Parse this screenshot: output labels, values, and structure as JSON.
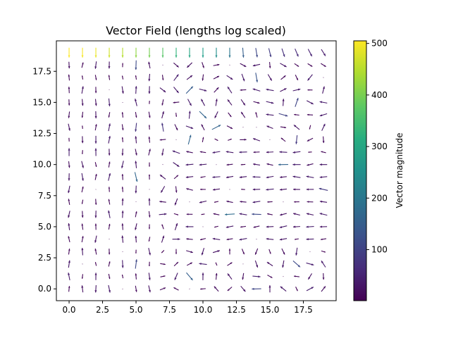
{
  "chart_data": {
    "type": "quiver",
    "title": "Vector Field (lengths log scaled)",
    "xlabel": "",
    "ylabel": "",
    "xlim": [
      -0.95,
      19.95
    ],
    "ylim": [
      -0.95,
      19.95
    ],
    "xticks": [
      0.0,
      2.5,
      5.0,
      7.5,
      10.0,
      12.5,
      15.0,
      17.5
    ],
    "xtick_labels": [
      "0.0",
      "2.5",
      "5.0",
      "7.5",
      "10.0",
      "12.5",
      "15.0",
      "17.5"
    ],
    "yticks": [
      0.0,
      2.5,
      5.0,
      7.5,
      10.0,
      12.5,
      15.0,
      17.5
    ],
    "ytick_labels": [
      "0.0",
      "2.5",
      "5.0",
      "7.5",
      "10.0",
      "12.5",
      "15.0",
      "17.5"
    ],
    "grid": false,
    "colormap": "viridis",
    "colorbar": {
      "label": "Vector magnitude",
      "range": [
        1,
        505
      ],
      "ticks": [
        100,
        200,
        300,
        400,
        500
      ],
      "tick_labels": [
        "100",
        "200",
        "300",
        "400",
        "500"
      ]
    },
    "field": {
      "x": [
        0,
        19
      ],
      "y": [
        0,
        19
      ],
      "step": 1,
      "magnitude_note": "strong downward arrows along top row (up to ~500 at x=0..6), weak field elsewhere"
    }
  }
}
